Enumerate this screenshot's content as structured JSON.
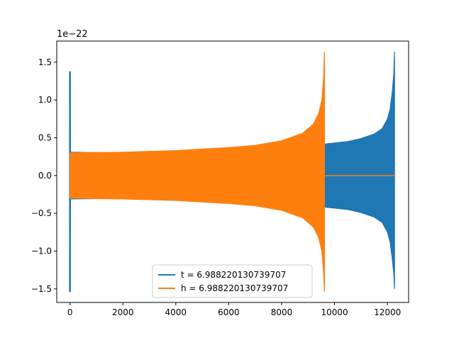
{
  "chart_data": {
    "type": "line",
    "title": "",
    "xlabel": "",
    "ylabel": "",
    "y_offset_label": "1e−22",
    "xlim": [
      -500,
      12800
    ],
    "ylim": [
      -1.68,
      1.78
    ],
    "x_ticks": [
      0,
      2000,
      4000,
      6000,
      8000,
      10000,
      12000
    ],
    "x_tick_labels": [
      "0",
      "2000",
      "4000",
      "6000",
      "8000",
      "10000",
      "12000"
    ],
    "y_ticks": [
      -1.5,
      -1.0,
      -0.5,
      0.0,
      0.5,
      1.0,
      1.5
    ],
    "y_tick_labels": [
      "−1.5",
      "−1.0",
      "−0.5",
      "0.0",
      "0.5",
      "1.0",
      "1.5"
    ],
    "grid": false,
    "legend_position": "lower-center",
    "series": [
      {
        "name": "t = 6.988220130739707",
        "color": "#1f77b4",
        "envelope_upper": [
          [
            0,
            1.38
          ],
          [
            20,
            0.31
          ],
          [
            2000,
            0.3
          ],
          [
            4000,
            0.31
          ],
          [
            6000,
            0.32
          ],
          [
            8000,
            0.34
          ],
          [
            9700,
            0.42
          ],
          [
            10500,
            0.45
          ],
          [
            11000,
            0.49
          ],
          [
            11500,
            0.55
          ],
          [
            11800,
            0.62
          ],
          [
            12000,
            0.75
          ],
          [
            12100,
            0.88
          ],
          [
            12180,
            1.1
          ],
          [
            12240,
            1.35
          ],
          [
            12270,
            1.64
          ]
        ],
        "envelope_lower": [
          [
            0,
            -1.54
          ],
          [
            20,
            -0.31
          ],
          [
            2000,
            -0.3
          ],
          [
            4000,
            -0.31
          ],
          [
            6000,
            -0.32
          ],
          [
            8000,
            -0.34
          ],
          [
            9700,
            -0.42
          ],
          [
            10500,
            -0.45
          ],
          [
            11000,
            -0.49
          ],
          [
            11500,
            -0.55
          ],
          [
            11800,
            -0.62
          ],
          [
            12000,
            -0.75
          ],
          [
            12100,
            -0.88
          ],
          [
            12180,
            -1.1
          ],
          [
            12240,
            -1.3
          ],
          [
            12270,
            -1.5
          ]
        ],
        "tail_value_after": 0.0,
        "x_end": 12300
      },
      {
        "name": "h = 6.988220130739707",
        "color": "#ff7f0e",
        "envelope_upper": [
          [
            0,
            0.3
          ],
          [
            2000,
            0.31
          ],
          [
            4000,
            0.33
          ],
          [
            6000,
            0.37
          ],
          [
            7000,
            0.4
          ],
          [
            8000,
            0.46
          ],
          [
            8800,
            0.56
          ],
          [
            9200,
            0.68
          ],
          [
            9400,
            0.82
          ],
          [
            9520,
            1.0
          ],
          [
            9580,
            1.25
          ],
          [
            9620,
            1.64
          ]
        ],
        "envelope_lower": [
          [
            0,
            -0.3
          ],
          [
            2000,
            -0.31
          ],
          [
            4000,
            -0.33
          ],
          [
            6000,
            -0.37
          ],
          [
            7000,
            -0.4
          ],
          [
            8000,
            -0.46
          ],
          [
            8800,
            -0.56
          ],
          [
            9200,
            -0.68
          ],
          [
            9400,
            -0.82
          ],
          [
            9520,
            -1.0
          ],
          [
            9580,
            -1.25
          ],
          [
            9620,
            -1.54
          ]
        ],
        "tail_value_after": 0.0,
        "x_end": 12300
      }
    ]
  }
}
